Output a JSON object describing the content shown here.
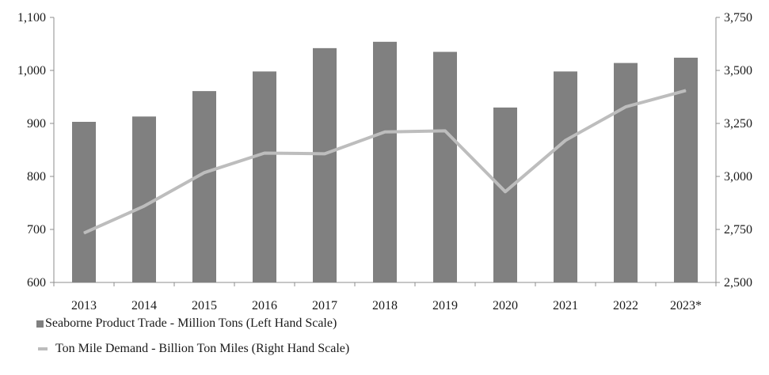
{
  "chart_data": {
    "type": "bar",
    "categories": [
      "2013",
      "2014",
      "2015",
      "2016",
      "2017",
      "2018",
      "2019",
      "2020",
      "2021",
      "2022",
      "2023*"
    ],
    "series": [
      {
        "name": "Seaborne Product Trade - Million Tons (Left Hand Scale)",
        "type": "bar",
        "axis": "left",
        "color": "#808080",
        "values": [
          903,
          913,
          961,
          998,
          1042,
          1054,
          1035,
          930,
          998,
          1014,
          1024
        ]
      },
      {
        "name": "Ton Mile Demand - Billion Ton Miles (Right Hand Scale)",
        "type": "line",
        "axis": "right",
        "color": "#bdbdbd",
        "values": [
          2733,
          2860,
          3018,
          3110,
          3107,
          3210,
          3215,
          2928,
          3170,
          3328,
          3405
        ]
      }
    ],
    "left_axis": {
      "ylim": [
        600,
        1100
      ],
      "ticks": [
        "600",
        "700",
        "800",
        "900",
        "1,000",
        "1,100"
      ],
      "tick_values": [
        600,
        700,
        800,
        900,
        1000,
        1100
      ]
    },
    "right_axis": {
      "ylim": [
        2500,
        3750
      ],
      "ticks": [
        "2,500",
        "2,750",
        "3,000",
        "3,250",
        "3,500",
        "3,750"
      ],
      "tick_values": [
        2500,
        2750,
        3000,
        3250,
        3500,
        3750
      ]
    },
    "grid": false,
    "legend_position": "bottom-left"
  }
}
